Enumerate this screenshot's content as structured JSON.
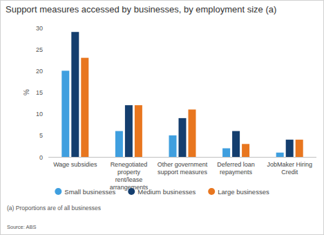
{
  "chart_data": {
    "type": "bar",
    "title": "Support measures accessed by businesses, by employment size (a)",
    "y_label": "%",
    "categories": [
      "Wage subsidies",
      "Renegotiated property rent/lease arrangements",
      "Other government support measures",
      "Deferred loan repayments",
      "JobMaker Hiring Credit"
    ],
    "series": [
      {
        "name": "Small businesses",
        "color": "#3f9fdf",
        "values": [
          20,
          6,
          5,
          2,
          1
        ]
      },
      {
        "name": "Medium businesses",
        "color": "#143e6e",
        "values": [
          29,
          12,
          9,
          6,
          4
        ]
      },
      {
        "name": "Large businesses",
        "color": "#e8761f",
        "values": [
          23,
          12,
          11,
          3,
          4
        ]
      }
    ],
    "ylim": [
      0,
      30
    ],
    "yticks": [
      0,
      5,
      10,
      15,
      20,
      25,
      30
    ],
    "grid": false,
    "legend": "bottom",
    "annotations": [
      "(a) Proportions are of all businesses",
      "Source: ABS"
    ]
  }
}
